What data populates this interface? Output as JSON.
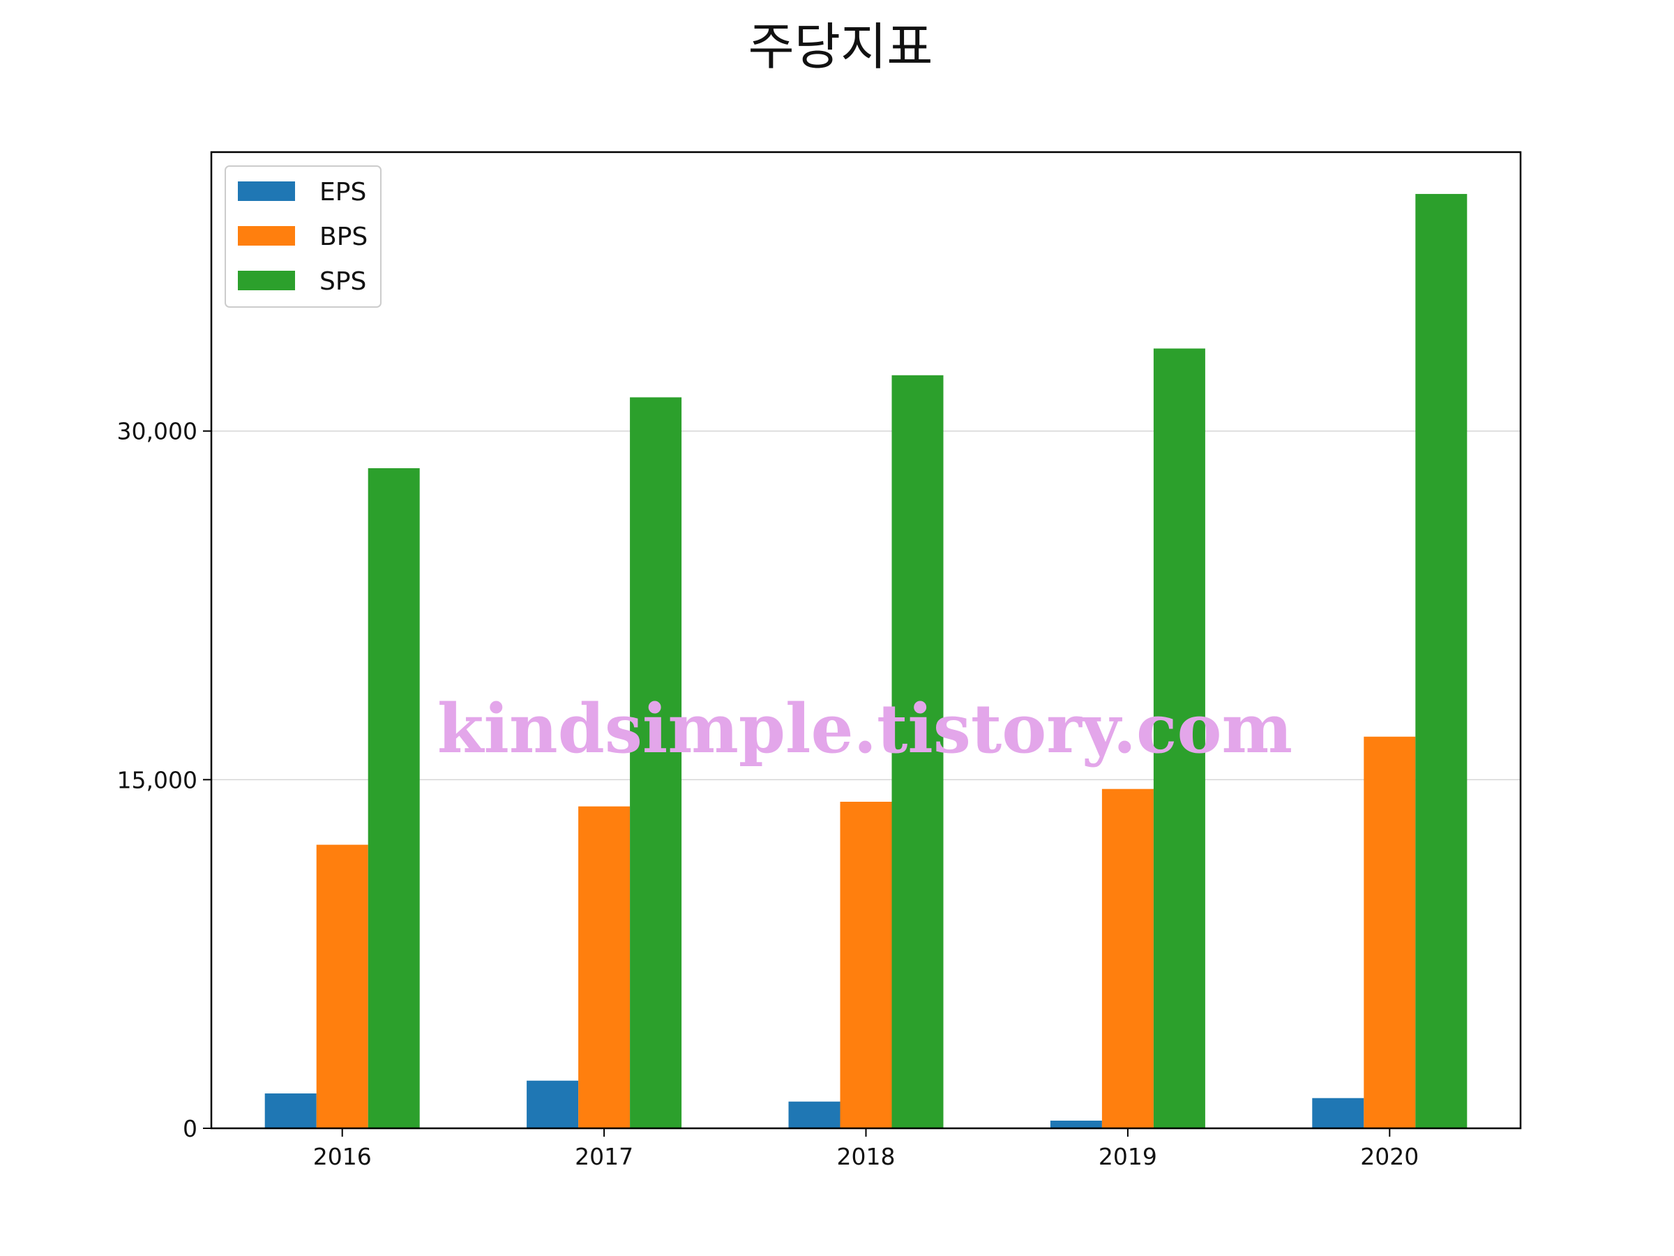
{
  "chart_data": {
    "type": "bar",
    "title": "주당지표",
    "categories": [
      "2016",
      "2017",
      "2018",
      "2019",
      "2020"
    ],
    "series": [
      {
        "name": "EPS",
        "color": "#1f77b4",
        "values": [
          1500,
          2050,
          1150,
          330,
          1300
        ]
      },
      {
        "name": "BPS",
        "color": "#ff7f0e",
        "values": [
          12200,
          13850,
          14050,
          14600,
          16850
        ]
      },
      {
        "name": "SPS",
        "color": "#2ca02c",
        "values": [
          28400,
          31450,
          32400,
          33550,
          40200
        ]
      }
    ],
    "ylim": [
      0,
      42000
    ],
    "yticks": [
      0,
      15000,
      30000
    ],
    "ytick_labels": [
      "0",
      "15,000",
      "30,000"
    ],
    "grid": "horizontal",
    "legend_position": "upper-left",
    "watermark": "kindsimple.tistory.com"
  }
}
